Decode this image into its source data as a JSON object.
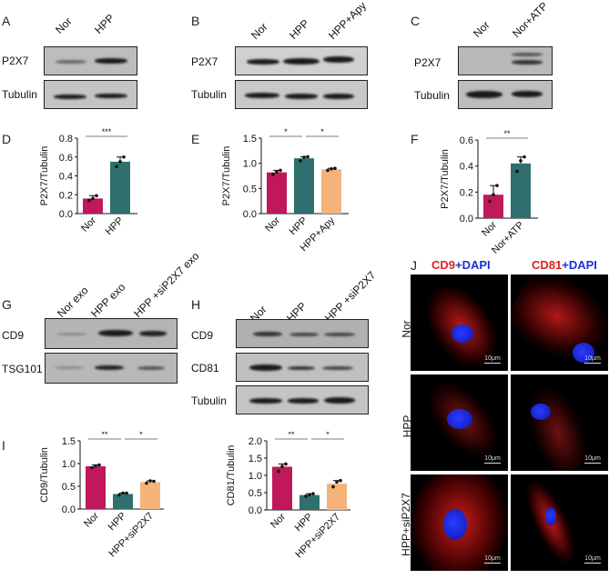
{
  "panels": {
    "A": {
      "label": "A",
      "lanes": [
        "Nor",
        "HPP"
      ],
      "rows": [
        "P2X7",
        "Tubulin"
      ]
    },
    "B": {
      "label": "B",
      "lanes": [
        "Nor",
        "HPP",
        "HPP+Apy"
      ],
      "rows": [
        "P2X7",
        "Tubulin"
      ]
    },
    "C": {
      "label": "C",
      "lanes": [
        "Nor",
        "Nor+ATP"
      ],
      "rows": [
        "P2X7",
        "Tubulin"
      ]
    },
    "D": {
      "label": "D"
    },
    "E": {
      "label": "E"
    },
    "F": {
      "label": "F"
    },
    "G": {
      "label": "G",
      "lanes": [
        "Nor exo",
        "HPP exo",
        "HPP +siP2X7 exo"
      ],
      "rows": [
        "CD9",
        "TSG101"
      ]
    },
    "H": {
      "label": "H",
      "lanes": [
        "Nor",
        "HPP",
        "HPP +siP2X7"
      ],
      "rows": [
        "CD9",
        "CD81",
        "Tubulin"
      ]
    },
    "I": {
      "label": "I"
    },
    "J": {
      "label": "J",
      "col_headers": [
        {
          "marker": "CD9",
          "plus": "+",
          "stain": "DAPI"
        },
        {
          "marker": "CD81",
          "plus": "+",
          "stain": "DAPI"
        }
      ],
      "row_labels": [
        "Nor",
        "HPP",
        "HPP+siP2X7"
      ],
      "scale_bar": "10μm"
    }
  },
  "colors": {
    "nor": "#c0185a",
    "hpp": "#2f6f6d",
    "treat": "#f5b27a",
    "red_label": "#e0201c",
    "blue_label": "#1c2fd6"
  },
  "chart_data": [
    {
      "id": "D",
      "type": "bar",
      "categories": [
        "Nor",
        "HPP"
      ],
      "values": [
        0.16,
        0.55
      ],
      "points": [
        [
          0.14,
          0.16,
          0.19
        ],
        [
          0.5,
          0.55,
          0.6
        ]
      ],
      "ylabel": "P2X7/Tubulin",
      "ylim": [
        0,
        0.8
      ],
      "yticks": [
        "0.0",
        "0.2",
        "0.4",
        "0.6",
        "0.8"
      ],
      "significance": [
        {
          "from": 0,
          "to": 1,
          "label": "***"
        }
      ]
    },
    {
      "id": "E",
      "type": "bar",
      "categories": [
        "Nor",
        "HPP",
        "HPP+Apy"
      ],
      "values": [
        0.82,
        1.1,
        0.88
      ],
      "points": [
        [
          0.78,
          0.83,
          0.86
        ],
        [
          1.05,
          1.12,
          1.13
        ],
        [
          0.86,
          0.89,
          0.9
        ]
      ],
      "ylabel": "P2X7/Tubulin",
      "ylim": [
        0,
        1.5
      ],
      "yticks": [
        "0.0",
        "0.5",
        "1.0",
        "1.5"
      ],
      "significance": [
        {
          "from": 0,
          "to": 1,
          "label": "*"
        },
        {
          "from": 1,
          "to": 2,
          "label": "*"
        }
      ]
    },
    {
      "id": "F",
      "type": "bar",
      "categories": [
        "Nor",
        "Nor+ATP"
      ],
      "values": [
        0.18,
        0.42
      ],
      "points": [
        [
          0.13,
          0.18,
          0.25
        ],
        [
          0.36,
          0.44,
          0.47
        ]
      ],
      "ylabel": "P2X7/Tubulin",
      "ylim": [
        0,
        0.6
      ],
      "yticks": [
        "0.0",
        "0.2",
        "0.4",
        "0.6"
      ],
      "significance": [
        {
          "from": 0,
          "to": 1,
          "label": "**"
        }
      ]
    },
    {
      "id": "I",
      "type": "bar",
      "categories": [
        "Nor",
        "HPP",
        "HPP+siP2X7"
      ],
      "values": [
        0.94,
        0.33,
        0.59
      ],
      "points": [
        [
          0.91,
          0.95,
          0.97
        ],
        [
          0.31,
          0.35,
          0.35
        ],
        [
          0.57,
          0.62,
          0.61
        ]
      ],
      "ylabel": "CD9/Tubulin",
      "ylim": [
        0,
        1.5
      ],
      "yticks": [
        "0.0",
        "0.5",
        "1.0",
        "1.5"
      ],
      "significance": [
        {
          "from": 0,
          "to": 1,
          "label": "**"
        },
        {
          "from": 1,
          "to": 2,
          "label": "*"
        }
      ]
    },
    {
      "id": "H2",
      "type": "bar",
      "categories": [
        "Nor",
        "HPP",
        "HPP+siP2X7"
      ],
      "values": [
        1.25,
        0.43,
        0.76
      ],
      "points": [
        [
          1.12,
          1.26,
          1.33
        ],
        [
          0.4,
          0.44,
          0.47
        ],
        [
          0.67,
          0.81,
          0.85
        ]
      ],
      "ylabel": "CD81/Tubulin",
      "ylim": [
        0,
        2.0
      ],
      "yticks": [
        "0.0",
        "0.5",
        "1.0",
        "1.5",
        "2.0"
      ],
      "significance": [
        {
          "from": 0,
          "to": 1,
          "label": "**"
        },
        {
          "from": 1,
          "to": 2,
          "label": "*"
        }
      ]
    }
  ]
}
